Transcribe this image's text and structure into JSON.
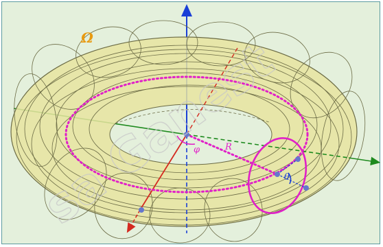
{
  "figure": {
    "region_label": "Ω",
    "angle_phi": "φ",
    "angle_theta": "θ",
    "radius_label": "R",
    "watermark": "sa Ganest"
  },
  "colors": {
    "background": "#e4f0dc",
    "torus_fill": "#e8e4a0",
    "torus_stroke": "#6b6b45",
    "axis_z": "#1a3fd6",
    "axis_x": "#d42a20",
    "axis_y": "#1e8a1e",
    "circle_magenta": "#e020c8",
    "point": "#6677cc",
    "region_label": "#e89a10"
  }
}
